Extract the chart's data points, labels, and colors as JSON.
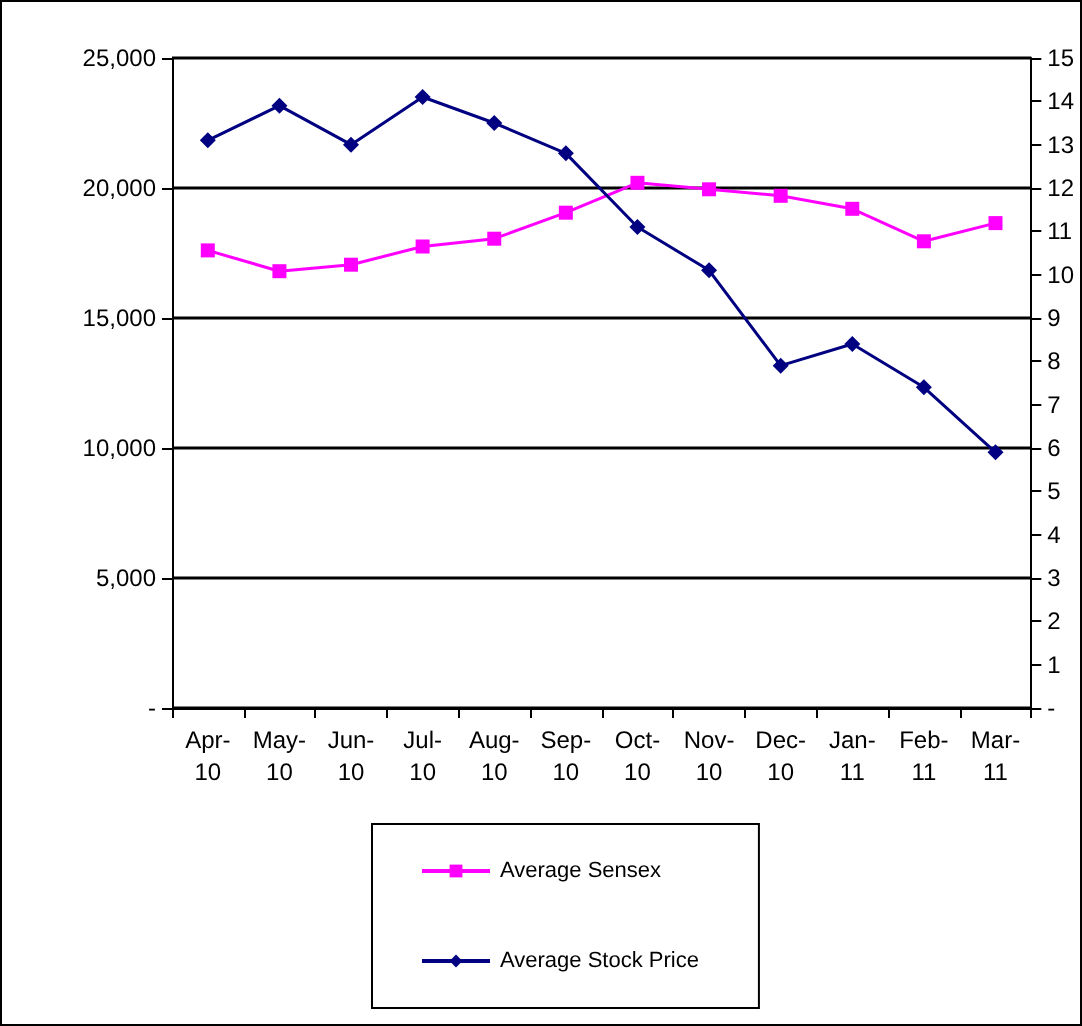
{
  "chart_data": {
    "type": "line",
    "categories": [
      "Apr-10",
      "May-10",
      "Jun-10",
      "Jul-10",
      "Aug-10",
      "Sep-10",
      "Oct-10",
      "Nov-10",
      "Dec-10",
      "Jan-11",
      "Feb-11",
      "Mar-11"
    ],
    "series": [
      {
        "name": "Average Sensex",
        "color": "#ff00ff",
        "marker": "square",
        "values": [
          17600,
          16800,
          17050,
          17750,
          18050,
          19050,
          20200,
          19950,
          19700,
          19200,
          17950,
          18650
        ]
      },
      {
        "name": "Average Stock Price",
        "color": "#000080",
        "marker": "diamond",
        "axis": "y2",
        "values": [
          13.1,
          13.9,
          13.0,
          14.1,
          13.5,
          12.8,
          11.1,
          10.1,
          7.9,
          8.4,
          7.4,
          5.9
        ]
      }
    ],
    "ylim": [
      0,
      25000
    ],
    "yticks": [
      {
        "value": 0,
        "label": "-"
      },
      {
        "value": 5000,
        "label": "5,000"
      },
      {
        "value": 10000,
        "label": "10,000"
      },
      {
        "value": 15000,
        "label": "15,000"
      },
      {
        "value": 20000,
        "label": "20,000"
      },
      {
        "value": 25000,
        "label": "25,000"
      }
    ],
    "y2lim": [
      0,
      15
    ],
    "y2ticks": [
      {
        "value": 0,
        "label": "-"
      },
      1,
      2,
      3,
      4,
      5,
      6,
      7,
      8,
      9,
      10,
      11,
      12,
      13,
      14,
      15
    ],
    "grid": "y",
    "legend": "bottom",
    "line_style": "solid"
  }
}
